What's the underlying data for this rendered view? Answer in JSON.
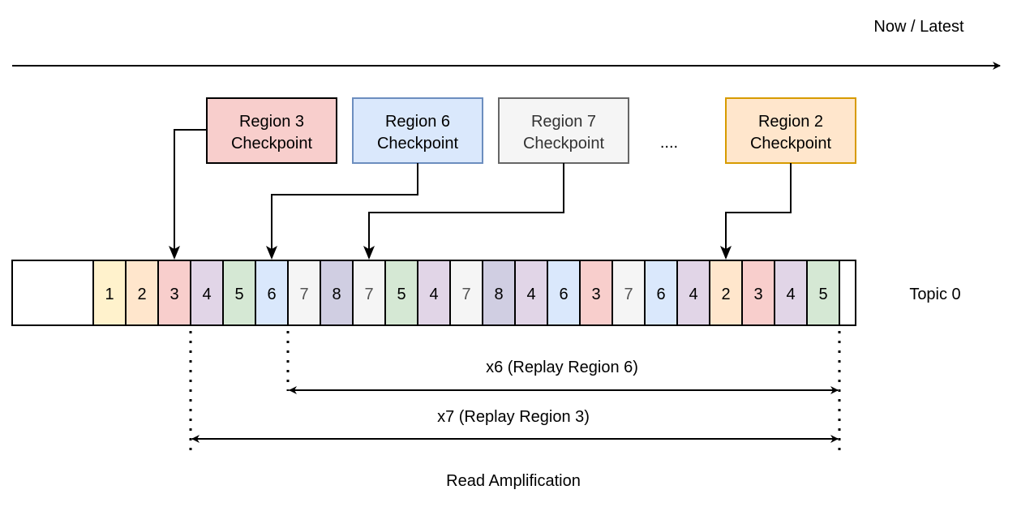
{
  "timeline": {
    "label": "Now / Latest"
  },
  "checkpoints": [
    {
      "line1": "Region 3",
      "line2": "Checkpoint",
      "fill": "#f8cecc",
      "stroke": "#000000",
      "text": "#000000"
    },
    {
      "line1": "Region 6",
      "line2": "Checkpoint",
      "fill": "#dae8fc",
      "stroke": "#6c8ebf",
      "text": "#000000"
    },
    {
      "line1": "Region 7",
      "line2": "Checkpoint",
      "fill": "#f5f5f5",
      "stroke": "#666666",
      "text": "#333333"
    },
    {
      "line1": "Region 2",
      "line2": "Checkpoint",
      "fill": "#ffe6cc",
      "stroke": "#d79b00",
      "text": "#000000"
    }
  ],
  "ellipsis": "....",
  "topic": {
    "label": "Topic 0",
    "cells": [
      "1",
      "2",
      "3",
      "4",
      "5",
      "6",
      "7",
      "8",
      "7",
      "5",
      "4",
      "7",
      "8",
      "4",
      "6",
      "3",
      "7",
      "6",
      "4",
      "2",
      "3",
      "4",
      "5"
    ]
  },
  "region_colors": {
    "1": "#fff2cc",
    "2": "#ffe6cc",
    "3": "#f8cecc",
    "4": "#e1d5e7",
    "5": "#d5e8d4",
    "6": "#dae8fc",
    "7": "#f5f5f5",
    "8": "#d0cee2"
  },
  "replay": {
    "region6": "x6 (Replay Region 6)",
    "region3": "x7 (Replay Region 3)",
    "caption": "Read Amplification"
  }
}
